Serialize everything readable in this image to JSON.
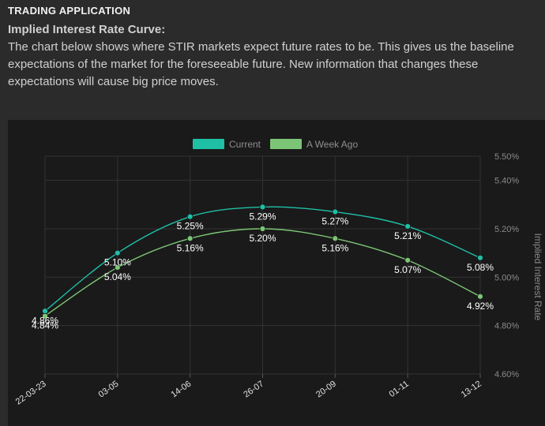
{
  "app": {
    "section_title": "TRADING APPLICATION"
  },
  "content": {
    "heading": "Implied Interest Rate Curve:",
    "description": "The chart below shows where STIR markets expect future rates to be. This gives us the baseline expectations of the market for the foreseeable future. New information that changes these expectations will cause big price moves."
  },
  "chart_data": {
    "type": "line",
    "categories": [
      "22-03-23",
      "03-05",
      "14-06",
      "26-07",
      "20-09",
      "01-11",
      "13-12"
    ],
    "series": [
      {
        "name": "Current",
        "color": "#1fbfa6",
        "values": [
          4.86,
          5.1,
          5.25,
          5.29,
          5.27,
          5.21,
          5.08
        ],
        "labels": [
          "4.86%",
          "5.10%",
          "5.25%",
          "5.29%",
          "5.27%",
          "5.21%",
          "5.08%"
        ]
      },
      {
        "name": "A Week Ago",
        "color": "#7cc576",
        "values": [
          4.84,
          5.04,
          5.16,
          5.2,
          5.16,
          5.07,
          4.92
        ],
        "labels": [
          "4.84%",
          "5.04%",
          "5.16%",
          "5.20%",
          "5.16%",
          "5.07%",
          "4.92%"
        ]
      }
    ],
    "ylabel": "Implied Interest Rate",
    "ylim": [
      4.6,
      5.5
    ],
    "yticks": [
      4.6,
      4.8,
      5.0,
      5.2,
      5.4,
      5.5
    ],
    "ytick_labels": [
      "4.60%",
      "4.80%",
      "5.00%",
      "5.20%",
      "5.40%",
      "5.50%"
    ],
    "legend_position": "top-center",
    "grid": true,
    "y_axis_side": "right"
  }
}
